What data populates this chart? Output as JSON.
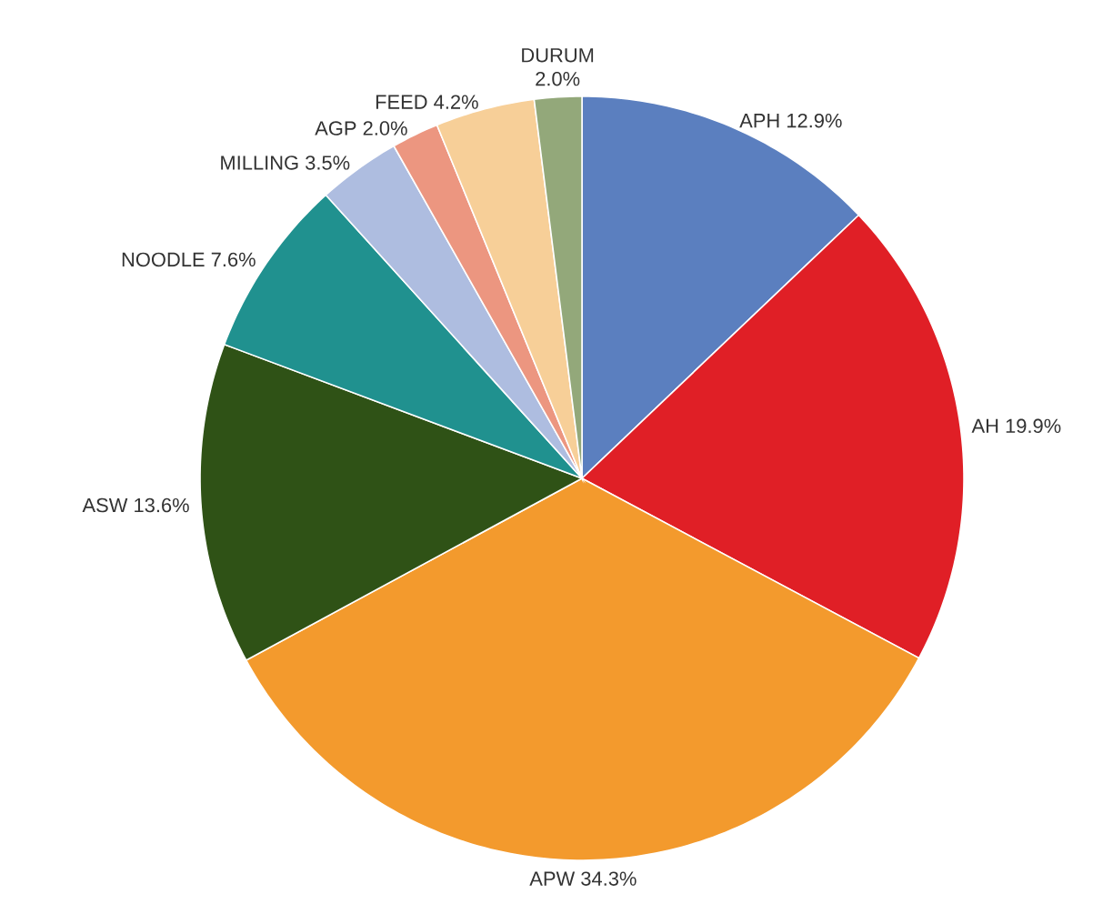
{
  "chart_data": {
    "type": "pie",
    "categories": [
      "APH",
      "AH",
      "APW",
      "ASW",
      "NOODLE",
      "MILLING",
      "AGP",
      "FEED",
      "DURUM"
    ],
    "values": [
      12.9,
      19.9,
      34.3,
      13.6,
      7.6,
      3.5,
      2.0,
      4.2,
      2.0
    ],
    "value_labels": [
      "12.9%",
      "19.9%",
      "34.3%",
      "13.6%",
      "7.6%",
      "3.5%",
      "2.0%",
      "4.2%",
      "2.0%"
    ],
    "colors": [
      "#5b7fbf",
      "#e01f26",
      "#f39a2d",
      "#2f5216",
      "#20918f",
      "#aebde0",
      "#ec9680",
      "#f7cf98",
      "#93a87a"
    ]
  }
}
